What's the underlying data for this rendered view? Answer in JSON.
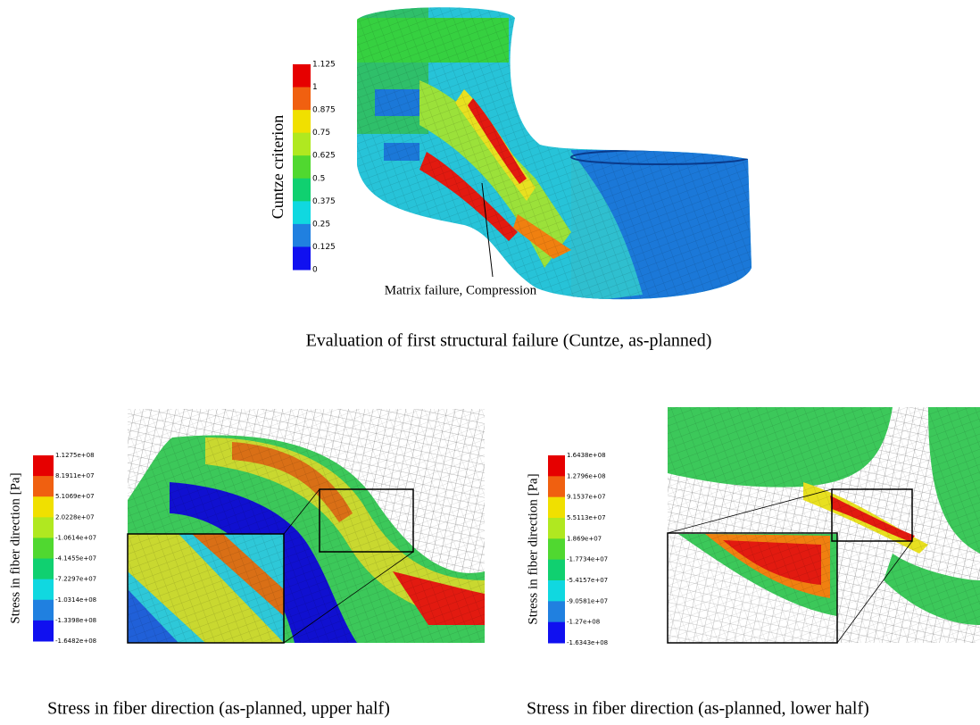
{
  "top_figure": {
    "colorbar": {
      "title": "Cuntze criterion",
      "labels": [
        "1.125",
        "1",
        "0.875",
        "0.75",
        "0.625",
        "0.5",
        "0.375",
        "0.25",
        "0.125",
        "0"
      ]
    },
    "annotation": "Matrix failure, Compression",
    "caption": "Evaluation of first structural failure (Cuntze, as-planned)"
  },
  "bottom_left": {
    "colorbar": {
      "title": "Stress in fiber direction [Pa]",
      "labels": [
        "1.1275e+08",
        "8.1911e+07",
        "5.1069e+07",
        "2.0228e+07",
        "-1.0614e+07",
        "-4.1455e+07",
        "-7.2297e+07",
        "-1.0314e+08",
        "-1.3398e+08",
        "-1.6482e+08"
      ]
    },
    "caption": "Stress in fiber direction (as-planned, upper half)"
  },
  "bottom_right": {
    "colorbar": {
      "title": "Stress in fiber direction [Pa]",
      "labels": [
        "1.6438e+08",
        "1.2796e+08",
        "9.1537e+07",
        "5.5113e+07",
        "1.869e+07",
        "-1.7734e+07",
        "-5.4157e+07",
        "-9.0581e+07",
        "-1.27e+08",
        "-1.6343e+08"
      ]
    },
    "caption": "Stress in fiber direction (as-planned, lower half)"
  }
}
